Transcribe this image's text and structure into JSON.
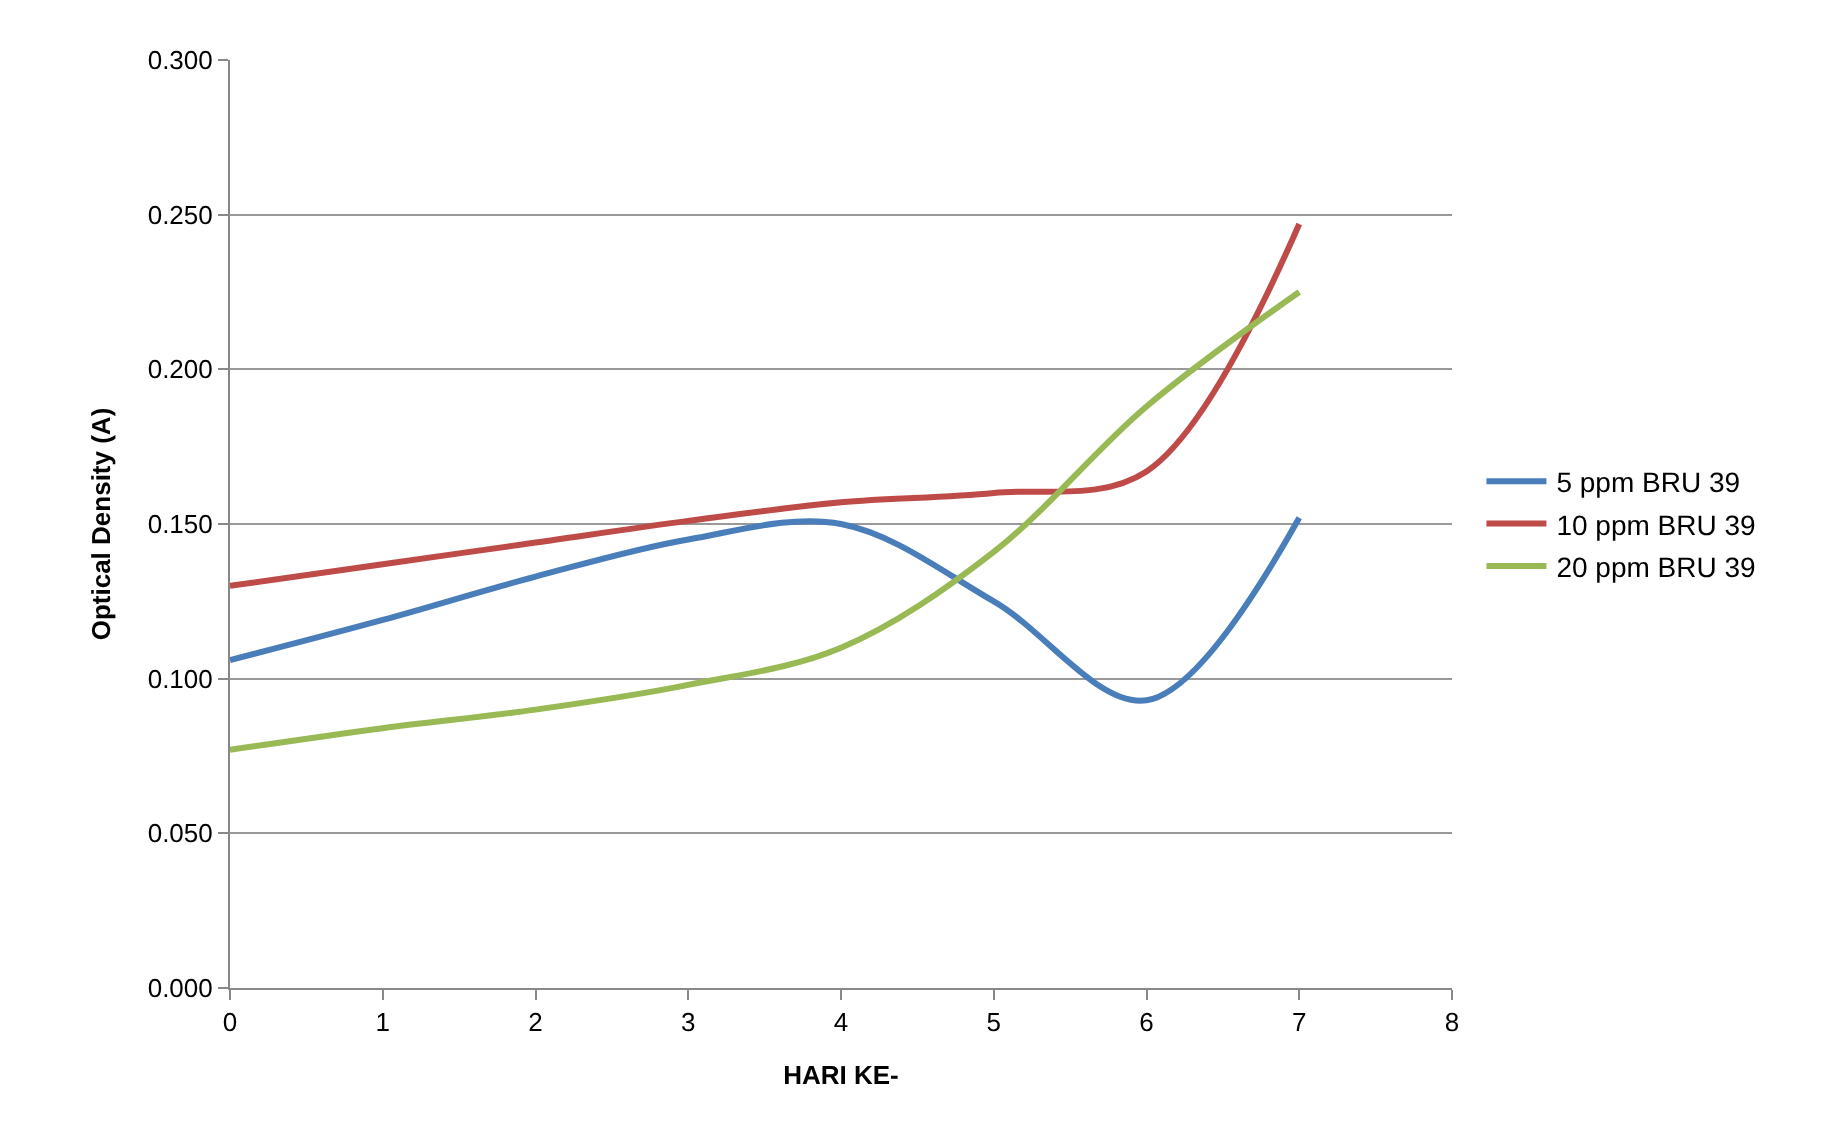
{
  "chart_data": {
    "type": "line",
    "xlabel": "HARI KE-",
    "ylabel": "Optical Density (A)",
    "x": [
      0,
      1,
      2,
      3,
      4,
      5,
      6,
      7
    ],
    "series": [
      {
        "name": "5 ppm BRU 39",
        "color": "#4a7ebb",
        "values": [
          0.106,
          0.119,
          0.133,
          0.145,
          0.15,
          0.125,
          0.093,
          0.152
        ]
      },
      {
        "name": "10 ppm BRU 39",
        "color": "#be4b48",
        "values": [
          0.13,
          0.137,
          0.144,
          0.151,
          0.157,
          0.16,
          0.167,
          0.247
        ]
      },
      {
        "name": "20 ppm BRU 39",
        "color": "#98b954",
        "values": [
          0.077,
          0.084,
          0.09,
          0.098,
          0.11,
          0.141,
          0.188,
          0.225
        ]
      }
    ],
    "xlim": [
      0,
      8
    ],
    "xticks": [
      0,
      1,
      2,
      3,
      4,
      5,
      6,
      7,
      8
    ],
    "ylim": [
      0,
      0.3
    ],
    "yticks": [
      {
        "value": 0,
        "label": "0.000"
      },
      {
        "value": 0.05,
        "label": "0.050"
      },
      {
        "value": 0.1,
        "label": "0.100"
      },
      {
        "value": 0.15,
        "label": "0.150"
      },
      {
        "value": 0.2,
        "label": "0.200"
      },
      {
        "value": 0.25,
        "label": "0.250"
      },
      {
        "value": 0.3,
        "label": "0.300"
      }
    ],
    "grid": "y",
    "legend": "right",
    "marker": "none",
    "line_style": "solid"
  }
}
